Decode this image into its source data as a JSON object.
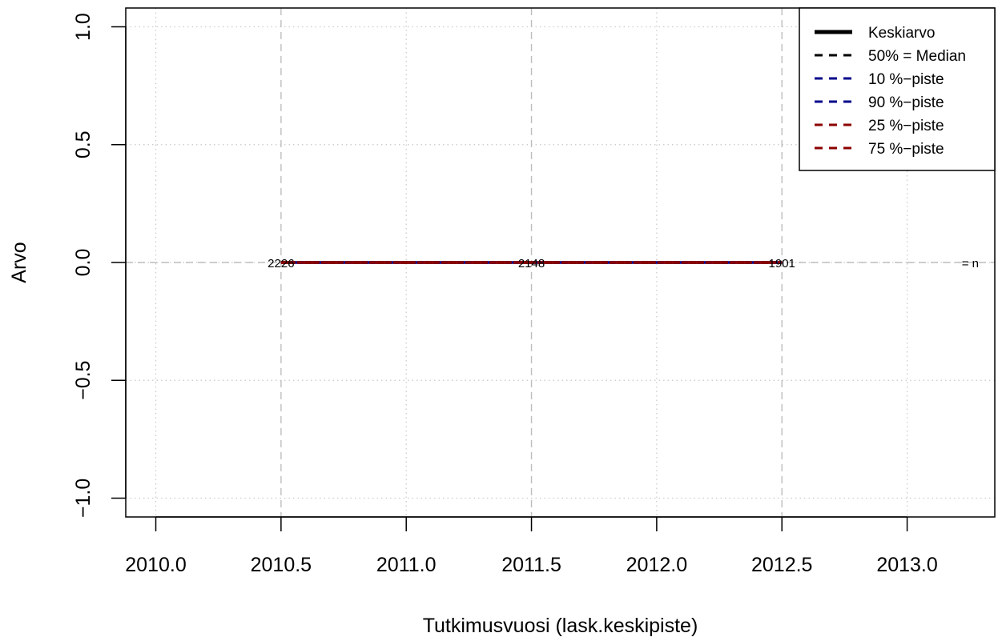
{
  "chart_data": {
    "type": "line",
    "xlabel": "Tutkimusvuosi (lask.keskipiste)",
    "ylabel": "Arvo",
    "xlim": [
      2009.88,
      2013.35
    ],
    "ylim": [
      -1.08,
      1.08
    ],
    "x_ticks": [
      2010.0,
      2010.5,
      2011.0,
      2011.5,
      2012.0,
      2012.5,
      2013.0
    ],
    "x_tick_labels": [
      "2010.0",
      "2010.5",
      "2011.0",
      "2011.5",
      "2012.0",
      "2012.5",
      "2013.0"
    ],
    "y_ticks": [
      -1.0,
      -0.5,
      0.0,
      0.5,
      1.0
    ],
    "y_tick_labels": [
      "−1.0",
      "−0.5",
      "0.0",
      "0.5",
      "1.0"
    ],
    "major_grid_x": [
      2010.5,
      2011.5,
      2012.5
    ],
    "minor_grid_x": [
      2010.0,
      2011.0,
      2012.0,
      2013.0
    ],
    "grid": true,
    "x": [
      2010.5,
      2011.5,
      2012.5
    ],
    "series": [
      {
        "name": "Keskiarvo",
        "values": [
          0,
          0,
          0
        ],
        "color": "#000000",
        "style": "solid"
      },
      {
        "name": "50% = Median",
        "values": [
          0,
          0,
          0
        ],
        "color": "#000000",
        "style": "dashed"
      },
      {
        "name": "10 %−piste",
        "values": [
          0,
          0,
          0
        ],
        "color": "#00008b",
        "style": "dashed"
      },
      {
        "name": "90 %−piste",
        "values": [
          0,
          0,
          0
        ],
        "color": "#00008b",
        "style": "dashed"
      },
      {
        "name": "25 %−piste",
        "values": [
          0,
          0,
          0
        ],
        "color": "#8b0000",
        "style": "dashed"
      },
      {
        "name": "75 %−piste",
        "values": [
          0,
          0,
          0
        ],
        "color": "#8b0000",
        "style": "dashed"
      }
    ],
    "n_labels": [
      {
        "x": 2010.5,
        "text": "2226"
      },
      {
        "x": 2011.5,
        "text": "2148"
      },
      {
        "x": 2012.5,
        "text": "1901"
      }
    ],
    "n_label_prefix": "= n",
    "legend_position": "top-right"
  }
}
